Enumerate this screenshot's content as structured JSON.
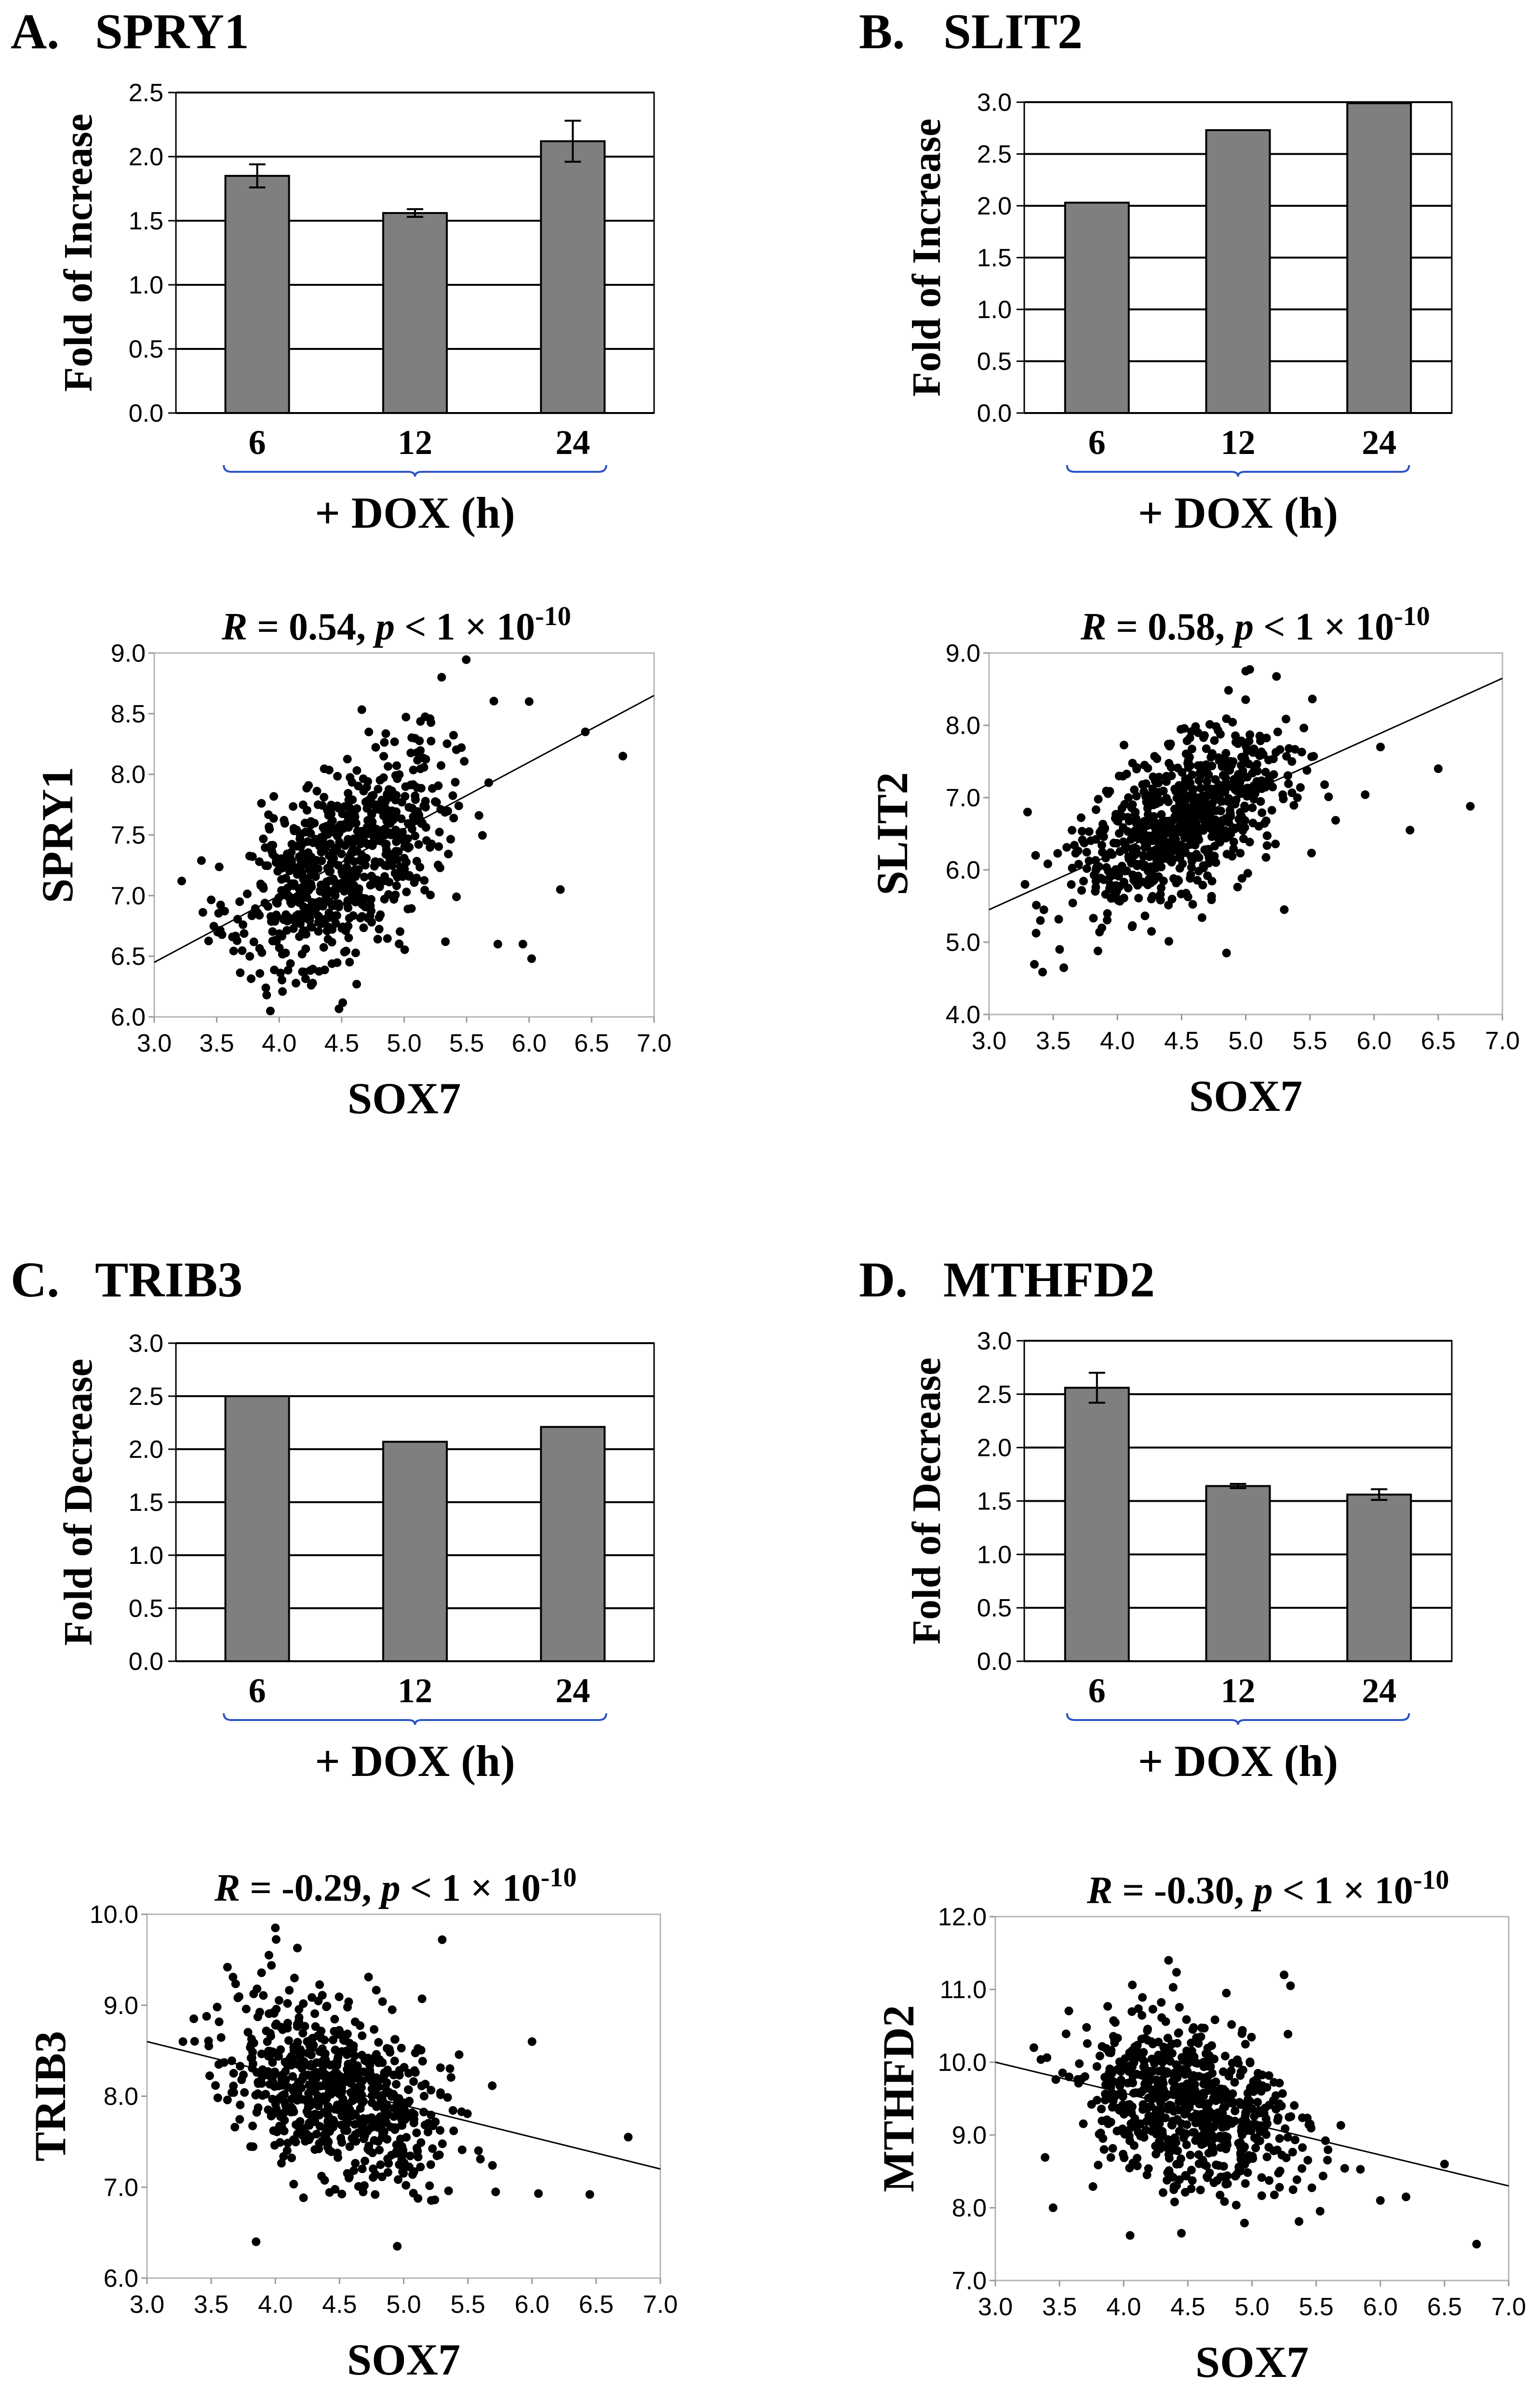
{
  "figure": {
    "bar_x_caption": "+ DOX (h)",
    "bar_categories": [
      "6",
      "12",
      "24"
    ],
    "scatter_xlabel": "SOX7",
    "stat_eq": " = ",
    "stat_sep": ",  ",
    "stat_R": "R",
    "stat_p": "p",
    "stat_lt": " < 1 × 10",
    "stat_exp": "-10"
  },
  "chart_data": [
    {
      "panel": "A.",
      "gene": "SPRY1",
      "type": "bar",
      "ylabel": "Fold of Increase",
      "xlabel": "+ DOX (h)",
      "categories": [
        "6",
        "12",
        "24"
      ],
      "values": [
        1.85,
        1.56,
        2.12
      ],
      "errors": [
        0.09,
        0.03,
        0.16
      ],
      "ylim": [
        0,
        2.5
      ],
      "yticks": [
        "0.0",
        "0.5",
        "1.0",
        "1.5",
        "2.0",
        "2.5"
      ],
      "grid": true
    },
    {
      "panel": "B.",
      "gene": "SLIT2",
      "type": "bar",
      "ylabel": "Fold of Increase",
      "xlabel": "+ DOX (h)",
      "categories": [
        "6",
        "12",
        "24"
      ],
      "values": [
        2.03,
        2.73,
        2.99
      ],
      "errors": [
        0,
        0,
        0
      ],
      "ylim": [
        0,
        3.0
      ],
      "yticks": [
        "0.0",
        "0.5",
        "1.0",
        "1.5",
        "2.0",
        "2.5",
        "3.0"
      ],
      "grid": true
    },
    {
      "panel": "C.",
      "gene": "TRIB3",
      "type": "bar",
      "ylabel": "Fold of Decrease",
      "xlabel": "+ DOX (h)",
      "categories": [
        "6",
        "12",
        "24"
      ],
      "values": [
        2.5,
        2.07,
        2.21
      ],
      "errors": [
        0,
        0,
        0
      ],
      "ylim": [
        0,
        3.0
      ],
      "yticks": [
        "0.0",
        "0.5",
        "1.0",
        "1.5",
        "2.0",
        "2.5",
        "3.0"
      ],
      "grid": true
    },
    {
      "panel": "D.",
      "gene": "MTHFD2",
      "type": "bar",
      "ylabel": "Fold of Decrease",
      "xlabel": "+ DOX (h)",
      "categories": [
        "6",
        "12",
        "24"
      ],
      "values": [
        2.56,
        1.64,
        1.56
      ],
      "errors": [
        0.14,
        0.02,
        0.05
      ],
      "ylim": [
        0,
        3.0
      ],
      "yticks": [
        "0.0",
        "0.5",
        "1.0",
        "1.5",
        "2.0",
        "2.5",
        "3.0"
      ],
      "grid": true
    },
    {
      "type": "scatter",
      "xlabel": "SOX7",
      "ylabel": "SPRY1",
      "R": "0.54",
      "xlim": [
        3.0,
        7.0
      ],
      "ylim": [
        6.0,
        9.0
      ],
      "xticks": [
        "3.0",
        "3.5",
        "4.0",
        "4.5",
        "5.0",
        "5.5",
        "6.0",
        "6.5",
        "7.0"
      ],
      "yticks": [
        "6.0",
        "6.5",
        "7.0",
        "7.5",
        "8.0",
        "8.5",
        "9.0"
      ],
      "fit": {
        "x": [
          3.0,
          7.0
        ],
        "y": [
          6.45,
          8.65
        ]
      },
      "cloud": {
        "center": [
          4.5,
          7.25
        ],
        "sd": [
          0.42,
          0.45
        ],
        "slope": 0.55,
        "n": 700,
        "seed": 11
      },
      "outliers": [
        [
          5.3,
          8.8
        ],
        [
          6.45,
          8.35
        ],
        [
          6.75,
          8.15
        ],
        [
          6.25,
          7.05
        ],
        [
          5.75,
          6.6
        ],
        [
          5.95,
          6.6
        ],
        [
          6.02,
          6.48
        ],
        [
          5.33,
          6.62
        ],
        [
          3.22,
          7.12
        ],
        [
          3.9,
          6.18
        ],
        [
          4.62,
          6.27
        ],
        [
          6.0,
          8.6
        ]
      ]
    },
    {
      "type": "scatter",
      "xlabel": "SOX7",
      "ylabel": "SLIT2",
      "R": "0.58",
      "xlim": [
        3.0,
        7.0
      ],
      "ylim": [
        4.0,
        9.0
      ],
      "xticks": [
        "3.0",
        "3.5",
        "4.0",
        "4.5",
        "5.0",
        "5.5",
        "6.0",
        "6.5",
        "7.0"
      ],
      "yticks": [
        "4.0",
        "5.0",
        "6.0",
        "7.0",
        "8.0",
        "9.0"
      ],
      "fit": {
        "x": [
          3.0,
          7.0
        ],
        "y": [
          5.45,
          8.65
        ]
      },
      "cloud": {
        "center": [
          4.5,
          6.65
        ],
        "sd": [
          0.42,
          0.6
        ],
        "slope": 0.85,
        "n": 700,
        "seed": 23
      },
      "outliers": [
        [
          5.0,
          8.75
        ],
        [
          6.75,
          6.88
        ],
        [
          6.5,
          7.4
        ],
        [
          6.28,
          6.55
        ],
        [
          5.3,
          5.45
        ],
        [
          4.85,
          4.85
        ],
        [
          3.55,
          4.9
        ],
        [
          3.4,
          5.3
        ],
        [
          3.28,
          5.8
        ],
        [
          6.05,
          7.7
        ],
        [
          3.3,
          6.8
        ]
      ]
    },
    {
      "type": "scatter",
      "xlabel": "SOX7",
      "ylabel": "TRIB3",
      "R": "-0.29",
      "xlim": [
        3.0,
        7.0
      ],
      "ylim": [
        6.0,
        10.0
      ],
      "xticks": [
        "3.0",
        "3.5",
        "4.0",
        "4.5",
        "5.0",
        "5.5",
        "6.0",
        "6.5",
        "7.0"
      ],
      "yticks": [
        "6.0",
        "7.0",
        "8.0",
        "9.0",
        "10.0"
      ],
      "fit": {
        "x": [
          3.0,
          7.0
        ],
        "y": [
          8.6,
          7.2
        ]
      },
      "cloud": {
        "center": [
          4.5,
          8.05
        ],
        "sd": [
          0.42,
          0.55
        ],
        "slope": -0.45,
        "n": 700,
        "seed": 37
      },
      "outliers": [
        [
          4.0,
          9.85
        ],
        [
          3.95,
          9.55
        ],
        [
          5.3,
          9.72
        ],
        [
          3.85,
          6.4
        ],
        [
          4.95,
          6.35
        ],
        [
          6.45,
          6.92
        ],
        [
          6.75,
          7.55
        ],
        [
          6.0,
          8.6
        ],
        [
          3.28,
          8.6
        ],
        [
          6.05,
          6.93
        ]
      ]
    },
    {
      "type": "scatter",
      "xlabel": "SOX7",
      "ylabel": "MTHFD2",
      "R": "-0.30",
      "xlim": [
        3.0,
        7.0
      ],
      "ylim": [
        7.0,
        12.0
      ],
      "xticks": [
        "3.0",
        "3.5",
        "4.0",
        "4.5",
        "5.0",
        "5.5",
        "6.0",
        "6.5",
        "7.0"
      ],
      "yticks": [
        "7.0",
        "8.0",
        "9.0",
        "10.0",
        "11.0",
        "12.0"
      ],
      "fit": {
        "x": [
          3.0,
          7.0
        ],
        "y": [
          10.0,
          8.3
        ]
      },
      "cloud": {
        "center": [
          4.5,
          9.35
        ],
        "sd": [
          0.42,
          0.65
        ],
        "slope": -0.55,
        "n": 700,
        "seed": 51
      },
      "outliers": [
        [
          4.35,
          11.4
        ],
        [
          5.25,
          11.2
        ],
        [
          5.3,
          11.05
        ],
        [
          6.75,
          7.5
        ],
        [
          4.05,
          7.62
        ],
        [
          4.45,
          7.65
        ],
        [
          3.45,
          8.0
        ],
        [
          6.0,
          8.1
        ],
        [
          6.5,
          8.6
        ],
        [
          6.2,
          8.15
        ],
        [
          3.3,
          10.2
        ],
        [
          4.8,
          10.95
        ]
      ]
    }
  ]
}
